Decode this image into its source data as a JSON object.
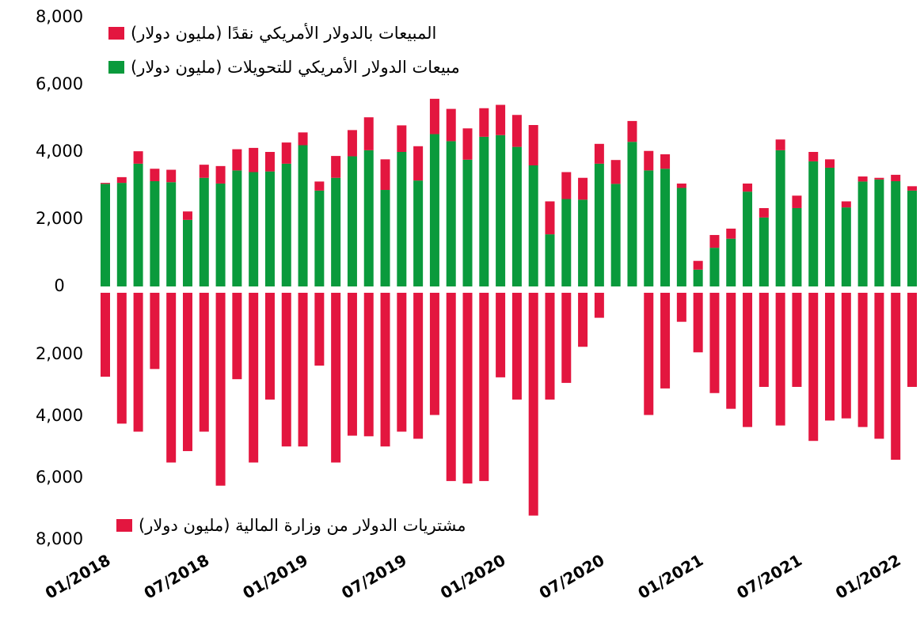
{
  "chart_data": [
    {
      "type": "stacked_bar",
      "ylim": [
        0,
        8000
      ],
      "yticks": [
        0,
        {
          "value": 2000,
          "label": "2,000"
        },
        {
          "value": 4000,
          "label": "4,000"
        },
        {
          "value": 6000,
          "label": "6,000"
        },
        {
          "value": 8000,
          "label": "8,000"
        }
      ],
      "series": [
        {
          "name": "مبيعات الدولار الأمريكي للتحويلات (مليون دولار)",
          "color": "#0a9a3c",
          "values": [
            3050,
            3080,
            3650,
            3130,
            3100,
            1980,
            3230,
            3060,
            3450,
            3400,
            3420,
            3650,
            4200,
            2850,
            3230,
            3870,
            4050,
            2870,
            4000,
            3150,
            4530,
            4320,
            3770,
            4450,
            4500,
            4150,
            3600,
            1550,
            2600,
            2580,
            3650,
            3050,
            4300,
            3450,
            3500,
            2930,
            500,
            1150,
            1420,
            2820,
            2050,
            4050,
            2330,
            3720,
            3530,
            2350,
            3120,
            3180,
            3130,
            2850
          ]
        },
        {
          "name": "المبيعات بالدولار الأمريكي نقدًا (مليون دولار)",
          "color": "#e3163f",
          "values": [
            30,
            170,
            370,
            370,
            370,
            250,
            390,
            520,
            630,
            720,
            580,
            630,
            380,
            270,
            650,
            780,
            980,
            910,
            790,
            1020,
            1050,
            960,
            930,
            850,
            900,
            950,
            1200,
            980,
            800,
            650,
            590,
            710,
            620,
            580,
            430,
            130,
            260,
            380,
            300,
            240,
            280,
            320,
            370,
            280,
            250,
            180,
            150,
            50,
            190,
            130
          ]
        }
      ]
    },
    {
      "type": "bar",
      "inverted": true,
      "ylim": [
        0,
        8000
      ],
      "yticks": [
        {
          "value": 2000,
          "label": "2,000"
        },
        {
          "value": 4000,
          "label": "4,000"
        },
        {
          "value": 6000,
          "label": "6,000"
        },
        {
          "value": 8000,
          "label": "8,000"
        }
      ],
      "categories": [
        "01/2018",
        null,
        null,
        null,
        null,
        null,
        "07/2018",
        null,
        null,
        null,
        null,
        null,
        "01/2019",
        null,
        null,
        null,
        null,
        null,
        "07/2019",
        null,
        null,
        null,
        null,
        null,
        "01/2020",
        null,
        null,
        null,
        null,
        null,
        "07/2020",
        null,
        null,
        null,
        null,
        null,
        "01/2021",
        null,
        null,
        null,
        null,
        null,
        "07/2021",
        null,
        null,
        null,
        null,
        null,
        "01/2022",
        null
      ],
      "series": [
        {
          "name": "مشتريات الدولار من وزارة المالية (مليون دولار)",
          "color": "#e3163f",
          "values": [
            2720,
            4240,
            4500,
            2470,
            5500,
            5130,
            4500,
            6250,
            2800,
            5500,
            3460,
            4980,
            4980,
            2360,
            5500,
            4630,
            4650,
            4980,
            4500,
            4730,
            3960,
            6100,
            6180,
            6100,
            2740,
            3460,
            7220,
            3460,
            2920,
            1750,
            810,
            0,
            0,
            3960,
            3100,
            940,
            1930,
            3250,
            3760,
            4350,
            3050,
            4300,
            3050,
            4800,
            4140,
            4070,
            4350,
            4730,
            5410,
            3050
          ]
        }
      ]
    }
  ]
}
